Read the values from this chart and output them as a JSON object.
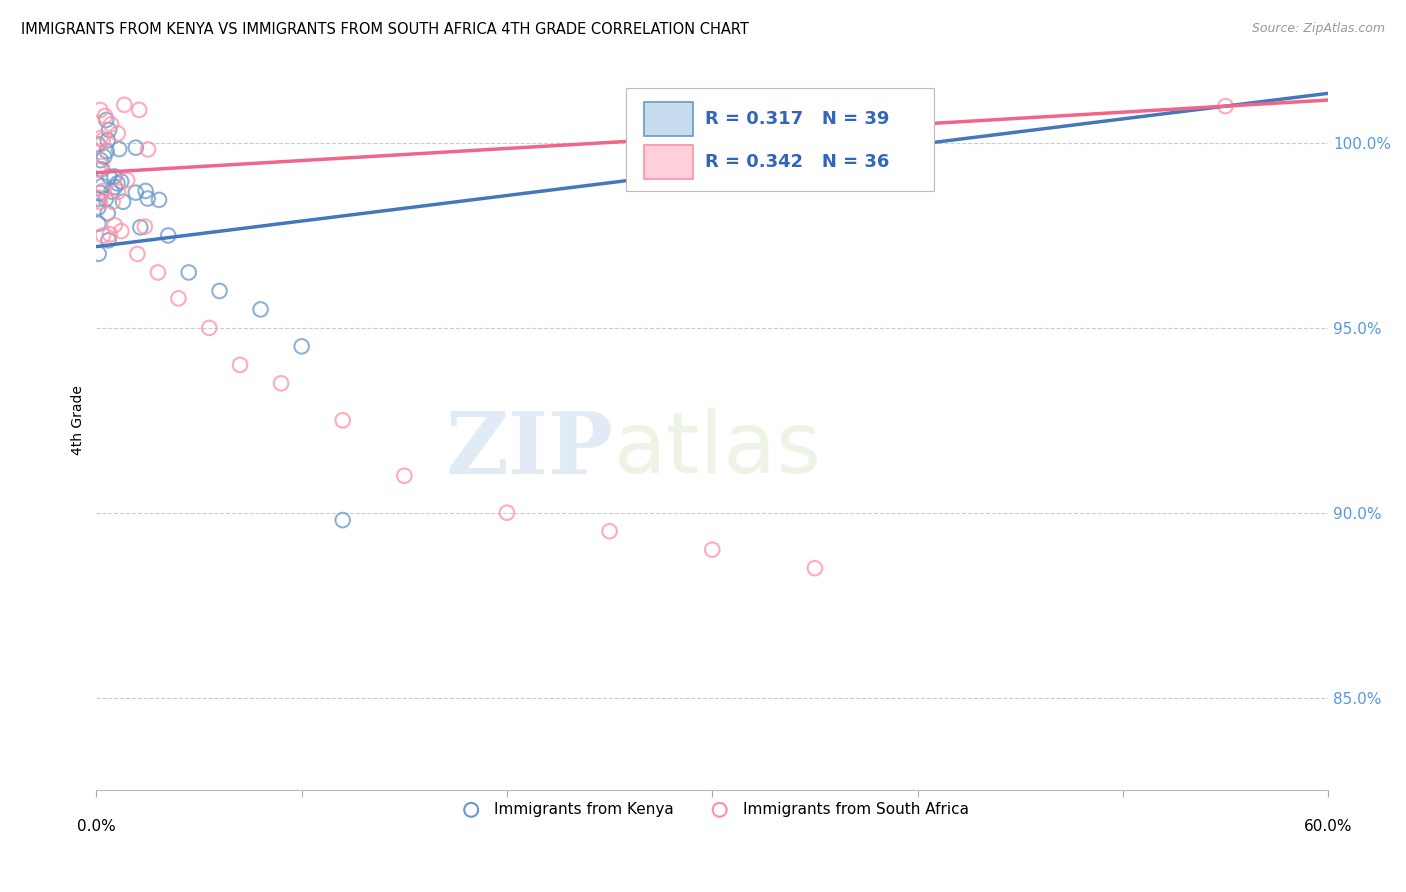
{
  "title": "IMMIGRANTS FROM KENYA VS IMMIGRANTS FROM SOUTH AFRICA 4TH GRADE CORRELATION CHART",
  "source": "Source: ZipAtlas.com",
  "ylabel": "4th Grade",
  "xlim": [
    0.0,
    60.0
  ],
  "ylim": [
    82.5,
    102.5
  ],
  "yticks": [
    85.0,
    90.0,
    95.0,
    100.0
  ],
  "ytick_labels": [
    "85.0%",
    "90.0%",
    "95.0%",
    "100.0%"
  ],
  "kenya_R": 0.317,
  "kenya_N": 39,
  "sa_R": 0.342,
  "sa_N": 36,
  "kenya_color": "#6699CC",
  "sa_color": "#FF8FA3",
  "kenya_line_color": "#4477BB",
  "sa_line_color": "#EE6688",
  "watermark_zip": "ZIP",
  "watermark_atlas": "atlas",
  "background_color": "#FFFFFF",
  "grid_color": "#CCCCCC",
  "legend_R_color": "#3366BB",
  "ytick_color": "#5599DD"
}
